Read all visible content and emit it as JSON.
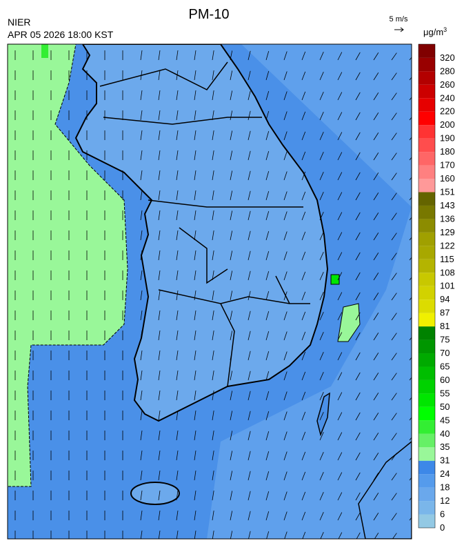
{
  "header": {
    "title": "PM-10",
    "agency": "NIER",
    "datetime": "APR 05 2026 18:00 KST",
    "wind_scale": "5 m/s",
    "unit": {
      "base": "μg/m",
      "exponent": "3"
    }
  },
  "colorbar": {
    "levels": [
      0,
      6,
      12,
      18,
      24,
      31,
      35,
      40,
      45,
      50,
      55,
      60,
      65,
      70,
      75,
      81,
      87,
      94,
      101,
      108,
      115,
      122,
      129,
      136,
      143,
      151,
      160,
      170,
      180,
      190,
      200,
      220,
      240,
      260,
      280,
      320
    ],
    "colors": [
      "#93c9e4",
      "#7ab6ea",
      "#6aa8ec",
      "#559bec",
      "#3d88e8",
      "#99f799",
      "#66f066",
      "#33ee33",
      "#00ff00",
      "#00e600",
      "#00d200",
      "#00be00",
      "#00aa00",
      "#009600",
      "#008200",
      "#f0f000",
      "#dcdc00",
      "#d2d200",
      "#c8c800",
      "#b4b400",
      "#a8a800",
      "#a0a000",
      "#8c8c00",
      "#787800",
      "#646400",
      "#ff9999",
      "#ff8080",
      "#ff6666",
      "#ff4d4d",
      "#ff3333",
      "#ff0000",
      "#e60000",
      "#cc0000",
      "#b30000",
      "#990000",
      "#800000"
    ]
  }
}
